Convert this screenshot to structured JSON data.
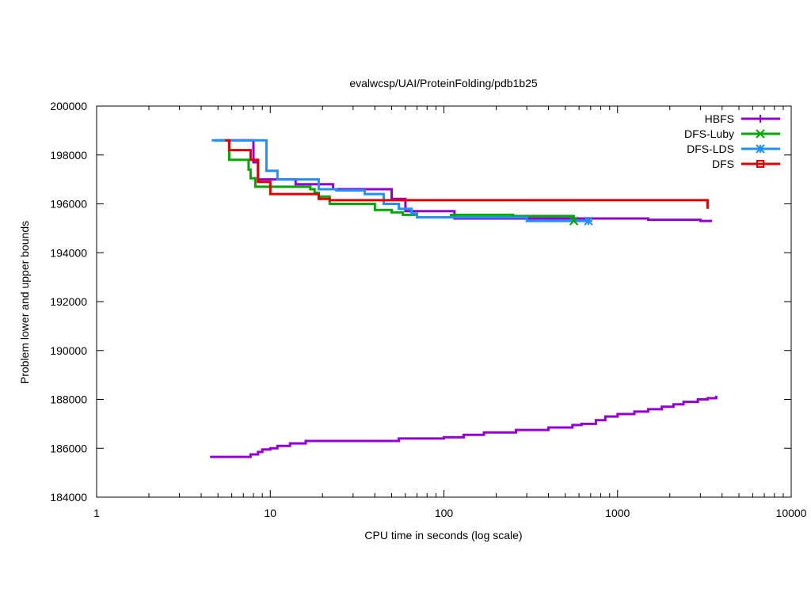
{
  "chart_data": {
    "type": "line",
    "title": "evalwcsp/UAI/ProteinFolding/pdb1b25",
    "xlabel": "CPU time in seconds (log scale)",
    "ylabel": "Problem lower and upper bounds",
    "xscale": "log",
    "xlim": [
      1,
      10000
    ],
    "ylim": [
      184000,
      200000
    ],
    "xticks": [
      1,
      10,
      100,
      1000,
      10000
    ],
    "xtick_labels": [
      "1",
      "10",
      "100",
      "1000",
      "10000"
    ],
    "yticks": [
      184000,
      186000,
      188000,
      190000,
      192000,
      194000,
      196000,
      198000,
      200000
    ],
    "ytick_labels": [
      "184000",
      "186000",
      "188000",
      "190000",
      "192000",
      "194000",
      "196000",
      "198000",
      "200000"
    ],
    "grid": false,
    "legend_position": "top-right",
    "series": [
      {
        "name": "HBFS",
        "color": "#9400d3",
        "marker": "plus",
        "points": [
          [
            5.5,
            198600
          ],
          [
            8.0,
            198600
          ],
          [
            8.0,
            197700
          ],
          [
            8.5,
            197700
          ],
          [
            8.5,
            197000
          ],
          [
            14,
            197000
          ],
          [
            14,
            196800
          ],
          [
            23,
            196800
          ],
          [
            23,
            196600
          ],
          [
            50,
            196600
          ],
          [
            50,
            196200
          ],
          [
            60,
            196200
          ],
          [
            60,
            195700
          ],
          [
            115,
            195700
          ],
          [
            115,
            195400
          ],
          [
            1500,
            195400
          ],
          [
            1500,
            195350
          ],
          [
            3000,
            195350
          ],
          [
            3000,
            195300
          ],
          [
            3500,
            195300
          ]
        ]
      },
      {
        "name": "HBFS lower bound",
        "color": "#9400d3",
        "marker": "none",
        "points": [
          [
            4.5,
            185650
          ],
          [
            7.7,
            185650
          ],
          [
            7.7,
            185750
          ],
          [
            8.5,
            185750
          ],
          [
            8.5,
            185850
          ],
          [
            9.0,
            185850
          ],
          [
            9.0,
            185950
          ],
          [
            10,
            185950
          ],
          [
            10,
            186000
          ],
          [
            11,
            186000
          ],
          [
            11,
            186100
          ],
          [
            13,
            186100
          ],
          [
            13,
            186200
          ],
          [
            16,
            186200
          ],
          [
            16,
            186300
          ],
          [
            55,
            186300
          ],
          [
            55,
            186400
          ],
          [
            100,
            186400
          ],
          [
            100,
            186450
          ],
          [
            130,
            186450
          ],
          [
            130,
            186550
          ],
          [
            170,
            186550
          ],
          [
            170,
            186650
          ],
          [
            260,
            186650
          ],
          [
            260,
            186750
          ],
          [
            400,
            186750
          ],
          [
            400,
            186850
          ],
          [
            550,
            186850
          ],
          [
            550,
            186950
          ],
          [
            620,
            186950
          ],
          [
            620,
            187000
          ],
          [
            750,
            187000
          ],
          [
            750,
            187150
          ],
          [
            850,
            187150
          ],
          [
            850,
            187300
          ],
          [
            1000,
            187300
          ],
          [
            1000,
            187400
          ],
          [
            1250,
            187400
          ],
          [
            1250,
            187500
          ],
          [
            1500,
            187500
          ],
          [
            1500,
            187600
          ],
          [
            1800,
            187600
          ],
          [
            1800,
            187700
          ],
          [
            2100,
            187700
          ],
          [
            2100,
            187800
          ],
          [
            2400,
            187800
          ],
          [
            2400,
            187900
          ],
          [
            2900,
            187900
          ],
          [
            2900,
            188000
          ],
          [
            3300,
            188000
          ],
          [
            3300,
            188050
          ],
          [
            3700,
            188050
          ],
          [
            3700,
            188150
          ]
        ]
      },
      {
        "name": "DFS-Luby",
        "color": "#00a800",
        "marker": "cross",
        "points": [
          [
            4.8,
            198600
          ],
          [
            5.8,
            198600
          ],
          [
            5.8,
            197800
          ],
          [
            7.5,
            197800
          ],
          [
            7.5,
            197400
          ],
          [
            7.7,
            197400
          ],
          [
            7.7,
            197050
          ],
          [
            8.2,
            197050
          ],
          [
            8.2,
            196700
          ],
          [
            17,
            196700
          ],
          [
            17,
            196600
          ],
          [
            18,
            196600
          ],
          [
            18,
            196450
          ],
          [
            19,
            196450
          ],
          [
            19,
            196300
          ],
          [
            22,
            196300
          ],
          [
            22,
            196000
          ],
          [
            40,
            196000
          ],
          [
            40,
            195750
          ],
          [
            50,
            195750
          ],
          [
            50,
            195650
          ],
          [
            58,
            195650
          ],
          [
            58,
            195550
          ],
          [
            70,
            195550
          ],
          [
            70,
            195450
          ],
          [
            110,
            195450
          ],
          [
            110,
            195550
          ],
          [
            250,
            195550
          ],
          [
            250,
            195500
          ],
          [
            560,
            195500
          ],
          [
            560,
            195300
          ]
        ]
      },
      {
        "name": "DFS-LDS",
        "color": "#1e90ff",
        "marker": "star",
        "points": [
          [
            4.6,
            198600
          ],
          [
            9.5,
            198600
          ],
          [
            9.5,
            197350
          ],
          [
            11,
            197350
          ],
          [
            11,
            197000
          ],
          [
            19,
            197000
          ],
          [
            19,
            196600
          ],
          [
            24,
            196600
          ],
          [
            24,
            196550
          ],
          [
            35,
            196550
          ],
          [
            35,
            196400
          ],
          [
            45,
            196400
          ],
          [
            45,
            196000
          ],
          [
            55,
            196000
          ],
          [
            55,
            195800
          ],
          [
            65,
            195800
          ],
          [
            65,
            195600
          ],
          [
            70,
            195600
          ],
          [
            70,
            195450
          ],
          [
            300,
            195450
          ],
          [
            300,
            195300
          ],
          [
            680,
            195300
          ]
        ]
      },
      {
        "name": "DFS",
        "color": "#e00000",
        "marker": "square",
        "points": [
          [
            5.5,
            198600
          ],
          [
            5.8,
            198600
          ],
          [
            5.8,
            198200
          ],
          [
            7.7,
            198200
          ],
          [
            7.7,
            197800
          ],
          [
            8.5,
            197800
          ],
          [
            8.5,
            196900
          ],
          [
            10,
            196900
          ],
          [
            10,
            196400
          ],
          [
            19,
            196400
          ],
          [
            19,
            196200
          ],
          [
            22,
            196200
          ],
          [
            22,
            196150
          ],
          [
            3300,
            196150
          ],
          [
            3300,
            195800
          ]
        ]
      }
    ]
  }
}
